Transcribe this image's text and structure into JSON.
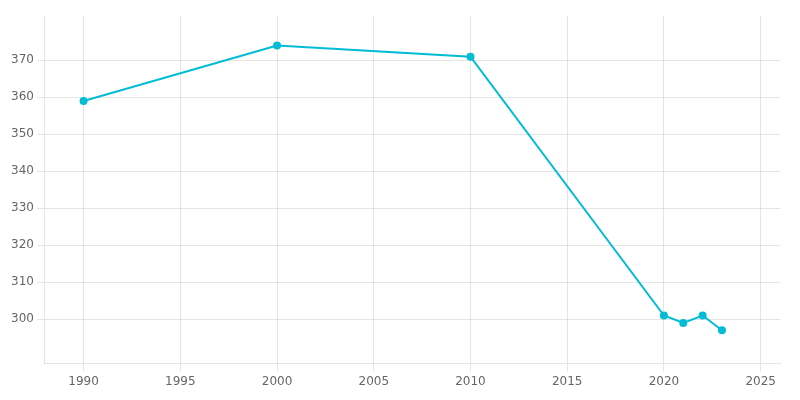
{
  "chart_data": {
    "type": "line",
    "x": [
      1990,
      2000,
      2010,
      2020,
      2021,
      2022,
      2023
    ],
    "values": [
      359,
      374,
      371,
      301,
      299,
      301,
      297
    ],
    "color": "#00bcd4",
    "marker": "circle",
    "xlim": [
      1988,
      2026
    ],
    "ylim": [
      288,
      382
    ],
    "xticks": [
      1990,
      1995,
      2000,
      2005,
      2010,
      2015,
      2020,
      2025
    ],
    "yticks": [
      300,
      310,
      320,
      330,
      340,
      350,
      360,
      370
    ],
    "grid": true
  }
}
